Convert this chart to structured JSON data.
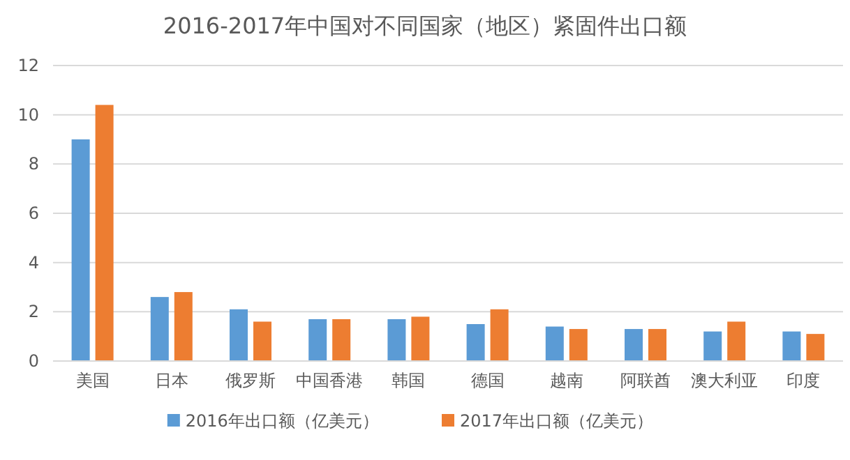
{
  "chart_data": {
    "type": "bar",
    "title": "2016-2017年中国对不同国家（地区）紧固件出口额",
    "categories": [
      "美国",
      "日本",
      "俄罗斯",
      "中国香港",
      "韩国",
      "德国",
      "越南",
      "阿联酋",
      "澳大利亚",
      "印度"
    ],
    "series": [
      {
        "name": "2016年出口额（亿美元）",
        "color": "#5b9bd5",
        "values": [
          9.0,
          2.6,
          2.1,
          1.7,
          1.7,
          1.5,
          1.4,
          1.3,
          1.2,
          1.2
        ]
      },
      {
        "name": "2017年出口额（亿美元）",
        "color": "#ed7d31",
        "values": [
          10.4,
          2.8,
          1.6,
          1.7,
          1.8,
          2.1,
          1.3,
          1.3,
          1.6,
          1.1
        ]
      }
    ],
    "ylim": [
      0,
      12
    ],
    "yticks": [
      0,
      2,
      4,
      6,
      8,
      10,
      12
    ],
    "grid": "y",
    "legend": "bottom"
  }
}
